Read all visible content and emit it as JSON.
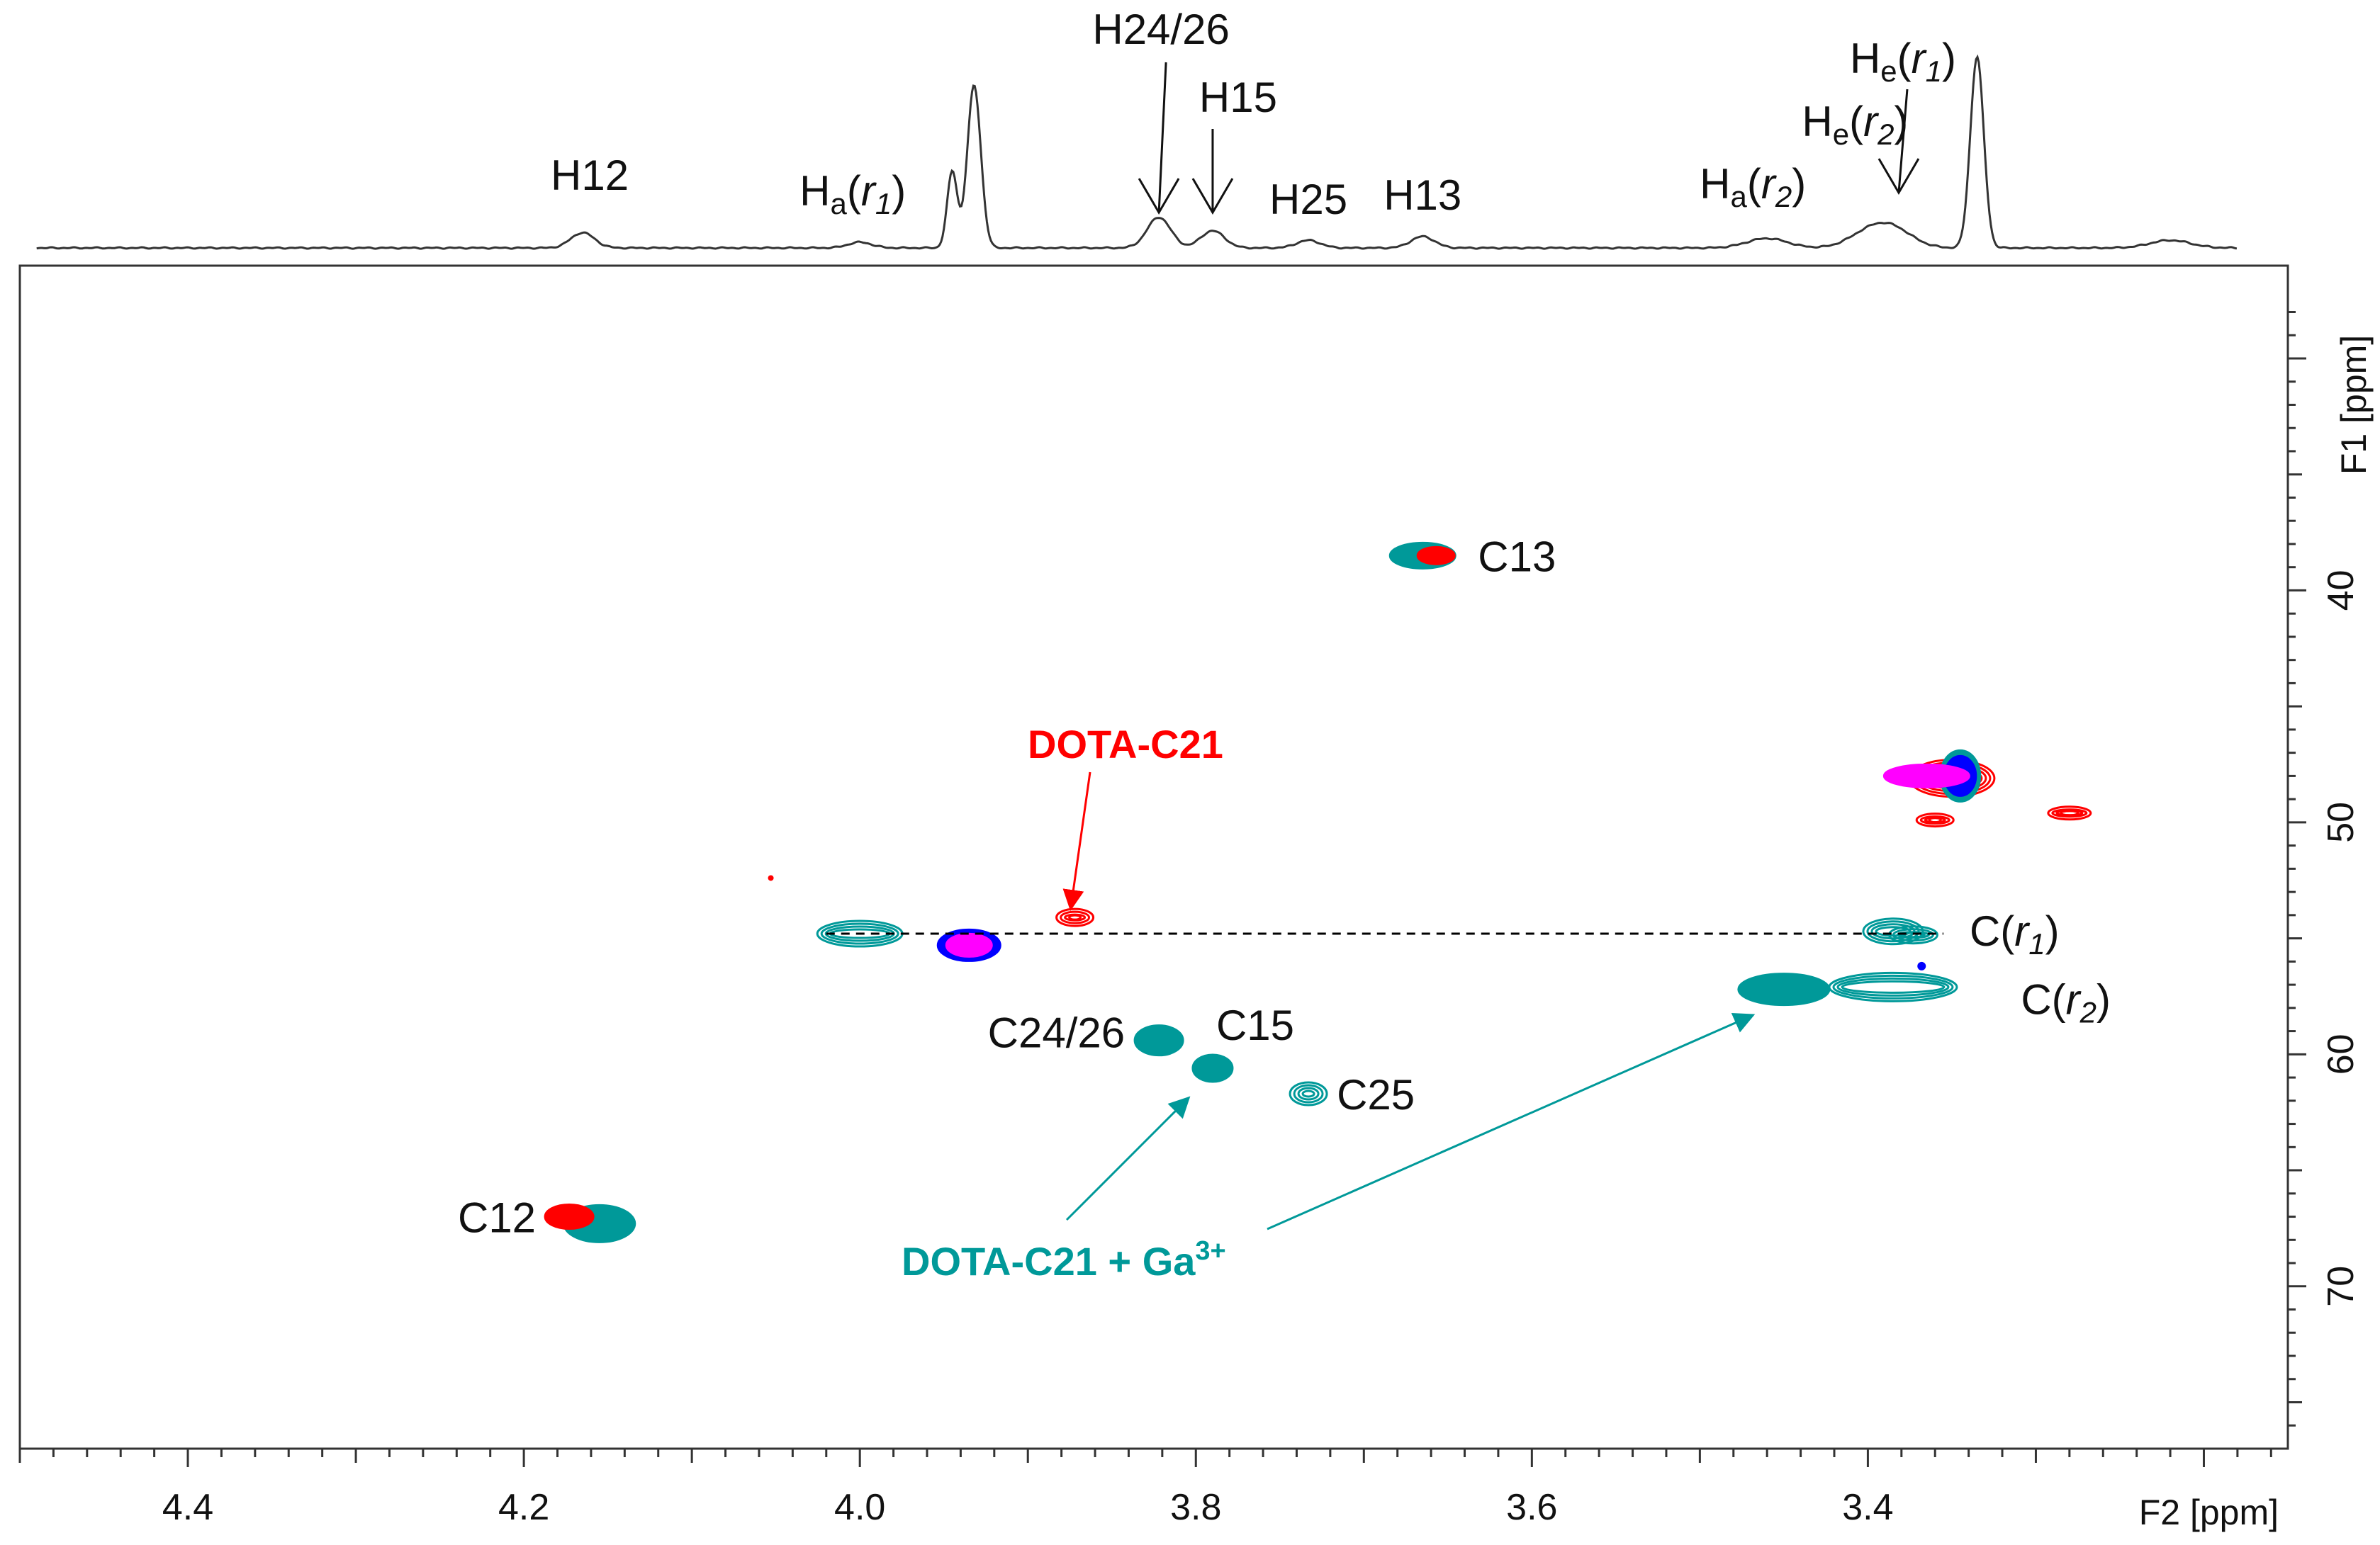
{
  "chart_data": {
    "type": "scatter",
    "subtype": "2D NMR HSQC overlay with 1H projection",
    "x_axis": {
      "title": "F2 [ppm]",
      "range": [
        4.5,
        3.15
      ],
      "reversed": true,
      "ticks": [
        4.4,
        4.2,
        4.0,
        3.8,
        3.6,
        3.4
      ],
      "tick_labels": [
        "4.4",
        "4.2",
        "4.0",
        "3.8",
        "3.6",
        "3.4"
      ]
    },
    "y_axis": {
      "title": "F1 [ppm]",
      "range": [
        26,
        77
      ],
      "reversed": true,
      "ticks": [
        40,
        50,
        60,
        70
      ],
      "tick_labels": [
        "40",
        "50",
        "60",
        "70"
      ]
    },
    "series_colors": {
      "free_ligand": "#ff0000",
      "ga_complex": "#009999",
      "blue": "#0000ff",
      "magenta": "#ff00ff"
    },
    "cross_peaks": [
      {
        "label": "C13",
        "x": 3.665,
        "y": 38.5,
        "series": [
          "ga_complex",
          "free_ligand"
        ]
      },
      {
        "label": "C12",
        "x": 4.165,
        "y": 67.0,
        "series": [
          "ga_complex",
          "free_ligand"
        ]
      },
      {
        "label": "C24/26",
        "x": 3.822,
        "y": 59.4,
        "series": [
          "ga_complex"
        ]
      },
      {
        "label": "C15",
        "x": 3.79,
        "y": 60.6,
        "series": [
          "ga_complex"
        ]
      },
      {
        "label": "C25",
        "x": 3.733,
        "y": 61.7,
        "series": [
          "ga_complex"
        ]
      },
      {
        "label": "C(r1)",
        "x": 3.385,
        "y": 54.7,
        "series": [
          "ga_complex"
        ]
      },
      {
        "label": "C(r2)",
        "x": 3.42,
        "y": 57.2,
        "series": [
          "ga_complex"
        ]
      },
      {
        "label": "",
        "x": 4.0,
        "y": 54.8,
        "series": [
          "ga_complex"
        ]
      },
      {
        "label": "",
        "x": 3.935,
        "y": 55.3,
        "series": [
          "blue",
          "magenta"
        ]
      },
      {
        "label": "",
        "x": 3.872,
        "y": 54.1,
        "series": [
          "free_ligand"
        ]
      },
      {
        "label": "",
        "x": 3.34,
        "y": 48.0,
        "series": [
          "ga_complex",
          "blue",
          "magenta",
          "free_ligand"
        ]
      },
      {
        "label": "",
        "x": 3.36,
        "y": 49.9,
        "series": [
          "free_ligand"
        ]
      },
      {
        "label": "",
        "x": 3.28,
        "y": 49.6,
        "series": [
          "free_ligand"
        ]
      }
    ],
    "dashed_line": {
      "x_from": 4.02,
      "x_to": 3.355,
      "y": 54.8
    },
    "projection_peaks": [
      {
        "label": "H12",
        "x": 4.165,
        "height": 0.08
      },
      {
        "label": "Ha(r1)",
        "x": 4.0,
        "height": 0.03
      },
      {
        "label": "",
        "x": 3.945,
        "height": 0.4
      },
      {
        "label": "",
        "x": 3.932,
        "height": 0.85
      },
      {
        "label": "H24/26",
        "x": 3.822,
        "height": 0.16
      },
      {
        "label": "H15",
        "x": 3.79,
        "height": 0.09
      },
      {
        "label": "H25",
        "x": 3.733,
        "height": 0.04
      },
      {
        "label": "H13",
        "x": 3.665,
        "height": 0.06
      },
      {
        "label": "Ha(r2)",
        "x": 3.46,
        "height": 0.05
      },
      {
        "label": "He(r2)",
        "x": 3.4,
        "height": 0.07
      },
      {
        "label": "He(r1)",
        "x": 3.385,
        "height": 0.09
      },
      {
        "label": "",
        "x": 3.335,
        "height": 1.0
      },
      {
        "label": "",
        "x": 3.22,
        "height": 0.04
      }
    ],
    "annotations": [
      {
        "text": "DOTA-C21",
        "color": "#ff0000"
      },
      {
        "text_base": "DOTA-C21 + Ga",
        "text_sup": "3+",
        "color": "#009999"
      }
    ]
  }
}
